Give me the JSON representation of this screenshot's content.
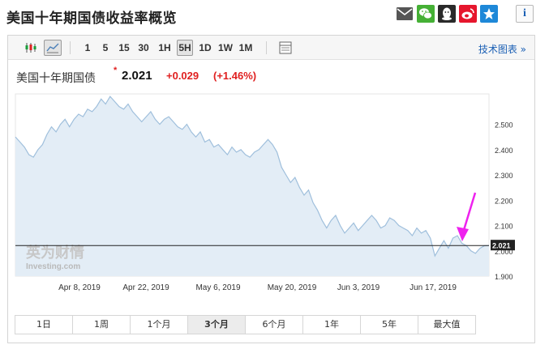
{
  "page": {
    "title": "美国十年期国债收益率概览"
  },
  "share_icons": [
    "mail-icon",
    "wechat-icon",
    "qq-icon",
    "weibo-icon",
    "qzone-icon"
  ],
  "info_icon": "i",
  "toolbar": {
    "intervals": [
      "1",
      "5",
      "15",
      "30",
      "1H",
      "5H",
      "1D",
      "1W",
      "1M"
    ],
    "active_interval": "5H",
    "advanced_link": "技术图表 »"
  },
  "quote": {
    "name": "美国十年期国债",
    "marker": "*",
    "price": "2.021",
    "change": "+0.029",
    "change_pct": "(+1.46%)"
  },
  "watermark": {
    "cn": "英为财情",
    "en": "Investing.com"
  },
  "ranges": [
    "1日",
    "1周",
    "1个月",
    "3个月",
    "6个月",
    "1年",
    "5年",
    "最大值"
  ],
  "active_range": "3个月",
  "colors": {
    "line": "#9fbfdc",
    "fill": "#e3edf6",
    "up": "#e02020",
    "current_line": "#222222",
    "current_badge": "#222222",
    "annotation_arrow": "#ee22ee"
  },
  "chart_data": {
    "type": "area",
    "title": "",
    "xlabel": "",
    "ylabel": "",
    "x_tick_labels": [
      "Apr 8, 2019",
      "Apr 22, 2019",
      "May 6, 2019",
      "May 20, 2019",
      "Jun 3, 2019",
      "Jun 17, 2019"
    ],
    "y_tick_labels": [
      "1.900",
      "2.000",
      "2.100",
      "2.200",
      "2.300",
      "2.400",
      "2.500"
    ],
    "ylim": [
      1.9,
      2.62
    ],
    "current_value": 2.021,
    "current_value_label": "2.021",
    "grid": false,
    "series": [
      {
        "values": [
          2.45,
          2.43,
          2.41,
          2.38,
          2.37,
          2.4,
          2.42,
          2.46,
          2.49,
          2.47,
          2.5,
          2.52,
          2.49,
          2.52,
          2.54,
          2.53,
          2.56,
          2.55,
          2.57,
          2.6,
          2.58,
          2.61,
          2.59,
          2.57,
          2.56,
          2.58,
          2.55,
          2.53,
          2.51,
          2.53,
          2.55,
          2.52,
          2.5,
          2.52,
          2.53,
          2.51,
          2.49,
          2.48,
          2.5,
          2.47,
          2.45,
          2.47,
          2.43,
          2.44,
          2.41,
          2.42,
          2.4,
          2.38,
          2.41,
          2.39,
          2.4,
          2.38,
          2.37,
          2.39,
          2.4,
          2.42,
          2.44,
          2.42,
          2.39,
          2.33,
          2.3,
          2.27,
          2.29,
          2.25,
          2.22,
          2.24,
          2.19,
          2.16,
          2.12,
          2.09,
          2.12,
          2.14,
          2.1,
          2.07,
          2.09,
          2.11,
          2.08,
          2.1,
          2.12,
          2.14,
          2.12,
          2.09,
          2.1,
          2.13,
          2.12,
          2.1,
          2.09,
          2.08,
          2.06,
          2.09,
          2.07,
          2.08,
          2.05,
          1.98,
          2.01,
          2.04,
          2.01,
          2.05,
          2.06,
          2.03,
          2.02,
          2.0,
          1.99,
          2.01,
          2.02,
          2.021
        ]
      }
    ]
  }
}
